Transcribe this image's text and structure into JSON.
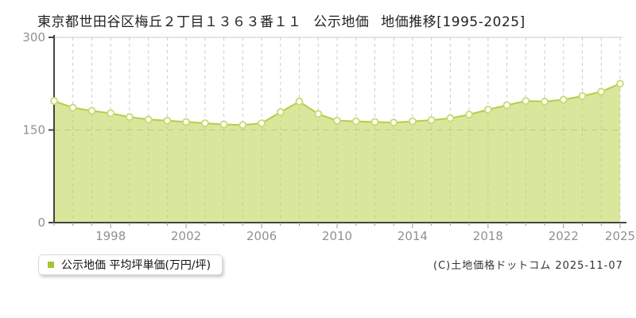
{
  "legend": {
    "label": "公示地価 平均坪単価(万円/坪)"
  },
  "footer": {
    "copyright": "(C)土地価格ドットコム 2025-11-07"
  },
  "chart_data": {
    "type": "area",
    "title": "東京都世田谷区梅丘２丁目１３６３番１１ 公示地価 地価推移[1995-2025]",
    "series_name": "公示地価 平均坪単価(万円/坪)",
    "x": [
      1995,
      1996,
      1997,
      1998,
      1999,
      2000,
      2001,
      2002,
      2003,
      2004,
      2005,
      2006,
      2007,
      2008,
      2009,
      2010,
      2011,
      2012,
      2013,
      2014,
      2015,
      2016,
      2017,
      2018,
      2019,
      2020,
      2021,
      2022,
      2023,
      2024,
      2025
    ],
    "values": [
      197,
      186,
      181,
      177,
      171,
      167,
      165,
      163,
      161,
      159,
      158,
      161,
      179,
      196,
      176,
      165,
      164,
      163,
      162,
      164,
      166,
      169,
      175,
      183,
      190,
      197,
      196,
      199,
      205,
      212,
      225
    ],
    "xlabel": "",
    "ylabel": "",
    "ylim": [
      0,
      300
    ],
    "yticks": [
      0,
      150,
      300
    ],
    "xticks_labeled": [
      1998,
      2002,
      2006,
      2010,
      2014,
      2018,
      2022,
      2025
    ],
    "grid": "vertical-dashed-per-year, horizontal-dashed-at-150, top-border",
    "legend_position": "bottom-left",
    "colors": {
      "area_fill": "#c0d75a",
      "line": "#b3cf48",
      "point_fill": "#fffef6",
      "point_stroke": "#c6db74",
      "legend_marker": "#a3c52e",
      "axis": "#444444",
      "grid": "#cccccc",
      "grid_150": "#bbbbbb",
      "tick_text": "#919191"
    }
  }
}
